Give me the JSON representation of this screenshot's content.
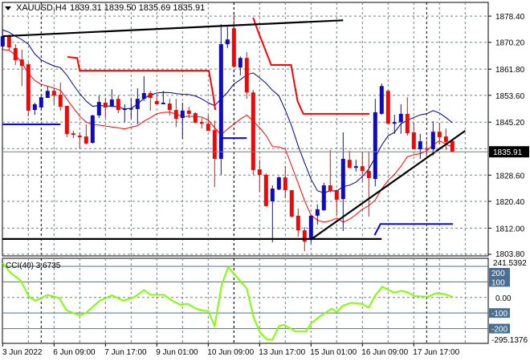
{
  "header": {
    "symbol": "XAUUSD,H4",
    "ohlc": "1839.31 1839.50 1835.69 1835.91"
  },
  "colors": {
    "bull": "#0a0ac8",
    "bear": "#ff0000",
    "grid": "#708090",
    "upper_line": "#000080",
    "lower_line": "#ff0000",
    "cci": "#7fff00",
    "level": "#4a6f93",
    "trendline": "#000000",
    "stop_red": "#ff0000",
    "stop_blue": "#0000ff"
  },
  "chart_data": [
    {
      "type": "candlestick",
      "symbol": "XAUUSD",
      "timeframe": "H4",
      "ylim": [
        1803.3,
        1882.7
      ],
      "grid": true,
      "candle_fields": [
        "open",
        "high",
        "low",
        "close"
      ],
      "candles": [
        [
          1868.9,
          1874.1,
          1867.9,
          1872.1
        ],
        [
          1872.1,
          1872.6,
          1867.6,
          1868.6
        ],
        [
          1868.4,
          1869.6,
          1863.1,
          1864.6
        ],
        [
          1864.8,
          1867.9,
          1856.5,
          1862.8
        ],
        [
          1863.3,
          1863.8,
          1847.0,
          1848.8
        ],
        [
          1849.0,
          1851.3,
          1847.5,
          1850.8
        ],
        [
          1849.8,
          1853.5,
          1849.5,
          1853.0
        ],
        [
          1852.8,
          1856.5,
          1852.8,
          1855.0
        ],
        [
          1855.0,
          1855.8,
          1850.8,
          1853.5
        ],
        [
          1853.8,
          1857.6,
          1848.8,
          1850.0
        ],
        [
          1850.3,
          1850.3,
          1840.5,
          1841.5
        ],
        [
          1841.7,
          1842.5,
          1840.2,
          1841.2
        ],
        [
          1841.0,
          1842.0,
          1837.0,
          1840.5
        ],
        [
          1840.7,
          1844.5,
          1838.2,
          1838.5
        ],
        [
          1838.7,
          1847.5,
          1838.5,
          1847.3
        ],
        [
          1847.3,
          1853.5,
          1846.5,
          1851.5
        ],
        [
          1851.3,
          1852.8,
          1846.5,
          1849.8
        ],
        [
          1850.0,
          1855.5,
          1850.0,
          1852.3
        ],
        [
          1852.5,
          1853.5,
          1848.0,
          1849.0
        ],
        [
          1849.0,
          1850.8,
          1845.2,
          1849.5
        ],
        [
          1849.3,
          1852.8,
          1846.2,
          1849.5
        ],
        [
          1849.3,
          1855.8,
          1844.5,
          1852.5
        ],
        [
          1852.5,
          1859.6,
          1851.8,
          1854.3
        ],
        [
          1854.3,
          1855.0,
          1848.8,
          1852.8
        ],
        [
          1851.8,
          1854.0,
          1850.8,
          1850.8
        ],
        [
          1850.8,
          1855.0,
          1850.8,
          1851.3
        ],
        [
          1851.0,
          1852.5,
          1847.3,
          1849.0
        ],
        [
          1849.0,
          1852.5,
          1843.7,
          1846.2
        ],
        [
          1846.5,
          1851.3,
          1840.0,
          1848.8
        ],
        [
          1848.8,
          1850.0,
          1846.5,
          1847.8
        ],
        [
          1848.0,
          1848.3,
          1845.0,
          1845.0
        ],
        [
          1845.2,
          1846.5,
          1843.2,
          1844.7
        ],
        [
          1844.7,
          1847.5,
          1842.5,
          1842.5
        ],
        [
          1842.7,
          1845.7,
          1824.9,
          1833.7
        ],
        [
          1833.7,
          1875.9,
          1828.7,
          1869.6
        ],
        [
          1869.6,
          1875.1,
          1868.4,
          1871.1
        ],
        [
          1874.6,
          1878.9,
          1862.6,
          1862.6
        ],
        [
          1862.3,
          1865.8,
          1859.8,
          1865.3
        ],
        [
          1865.3,
          1867.1,
          1852.5,
          1854.5
        ],
        [
          1854.5,
          1855.3,
          1828.7,
          1830.2
        ],
        [
          1830.4,
          1833.4,
          1823.4,
          1828.7
        ],
        [
          1828.7,
          1829.2,
          1818.9,
          1818.9
        ],
        [
          1820.4,
          1825.4,
          1807.6,
          1824.4
        ],
        [
          1824.1,
          1828.2,
          1823.9,
          1827.9
        ],
        [
          1827.9,
          1831.4,
          1821.4,
          1823.9
        ],
        [
          1823.9,
          1823.9,
          1815.3,
          1815.6
        ],
        [
          1815.9,
          1818.1,
          1809.3,
          1811.3
        ],
        [
          1811.3,
          1812.3,
          1804.8,
          1807.8
        ],
        [
          1808.3,
          1815.9,
          1807.1,
          1815.9
        ],
        [
          1815.9,
          1819.4,
          1813.1,
          1817.9
        ],
        [
          1817.6,
          1826.2,
          1817.4,
          1825.4
        ],
        [
          1825.4,
          1836.5,
          1823.1,
          1823.6
        ],
        [
          1823.9,
          1824.1,
          1816.1,
          1820.9
        ],
        [
          1821.1,
          1842.0,
          1811.1,
          1833.7
        ],
        [
          1833.4,
          1836.2,
          1830.7,
          1830.9
        ],
        [
          1830.9,
          1833.4,
          1829.7,
          1831.4
        ],
        [
          1831.4,
          1835.9,
          1826.4,
          1829.9
        ],
        [
          1829.9,
          1835.9,
          1815.6,
          1827.7
        ],
        [
          1827.4,
          1852.5,
          1825.1,
          1848.3
        ],
        [
          1847.8,
          1857.3,
          1847.5,
          1856.5
        ],
        [
          1855.0,
          1855.3,
          1844.7,
          1844.7
        ],
        [
          1844.7,
          1847.5,
          1841.5,
          1845.2
        ],
        [
          1845.2,
          1850.8,
          1841.5,
          1847.8
        ],
        [
          1847.8,
          1853.0,
          1841.0,
          1841.7
        ],
        [
          1842.0,
          1845.0,
          1836.7,
          1836.7
        ],
        [
          1836.7,
          1841.5,
          1833.7,
          1839.2
        ],
        [
          1837.0,
          1839.5,
          1834.4,
          1836.7
        ],
        [
          1836.7,
          1845.5,
          1834.7,
          1842.2
        ],
        [
          1842.2,
          1845.0,
          1838.2,
          1840.5
        ],
        [
          1840.7,
          1843.2,
          1836.5,
          1839.0
        ],
        [
          1839.31,
          1839.5,
          1835.69,
          1835.91
        ]
      ],
      "price_axis": {
        "ticks": [
          1878.4,
          1870.2,
          1861.8,
          1853.6,
          1845.2,
          1828.6,
          1820.4,
          1812.0,
          1803.8
        ],
        "labels": [
          "1878.40",
          "1870.20",
          "1861.80",
          "1853.60",
          "1845.20",
          "1828.60",
          "1820.40",
          "1812.00",
          "1803.80"
        ]
      },
      "current_price": {
        "value": 1835.91,
        "label": "1835.91"
      },
      "time_axis": [
        {
          "index": 0,
          "label": "3 Jun 2022"
        },
        {
          "index": 8,
          "label": "6 Jun 09:00"
        },
        {
          "index": 16,
          "label": "7 Jun 17:00"
        },
        {
          "index": 24,
          "label": "9 Jun 01:00"
        },
        {
          "index": 32,
          "label": "10 Jun 09:00"
        },
        {
          "index": 40,
          "label": "13 Jun 17:00"
        },
        {
          "index": 48,
          "label": "15 Jun 01:00"
        },
        {
          "index": 56,
          "label": "16 Jun 09:00"
        },
        {
          "index": 64,
          "label": "17 Jun 17:00"
        }
      ],
      "trendlines": [
        {
          "points": [
            [
              -0.1,
              1872.1
            ],
            [
              53.0,
              1877.1
            ]
          ]
        },
        {
          "points": [
            [
              -0.1,
              1808.6
            ],
            [
              59.0,
              1808.6
            ]
          ]
        },
        {
          "points": [
            [
              48.1,
              1808.6
            ],
            [
              72.0,
              1842.5
            ]
          ]
        }
      ],
      "stop_lines_red": [
        [
          [
            10.1,
            1865.6
          ],
          [
            11.6,
            1865.3
          ],
          [
            12.0,
            1861.3
          ],
          [
            32.1,
            1861.3
          ],
          [
            32.8,
            1853.3
          ],
          [
            33.1,
            1849.0
          ]
        ],
        [
          [
            39.0,
            1877.9
          ],
          [
            39.8,
            1873.4
          ],
          [
            41.8,
            1863.1
          ],
          [
            44.9,
            1863.1
          ],
          [
            45.9,
            1851.8
          ],
          [
            46.8,
            1847.8
          ],
          [
            57.1,
            1847.8
          ]
        ]
      ],
      "stop_lines_blue": [
        [
          [
            -0.1,
            1844.5
          ],
          [
            9.0,
            1844.5
          ]
        ],
        [
          [
            34.0,
            1840.2
          ],
          [
            38.0,
            1840.2
          ]
        ],
        [
          [
            57.9,
            1809.8
          ],
          [
            58.8,
            1813.3
          ],
          [
            70.1,
            1813.3
          ]
        ]
      ]
    },
    {
      "type": "line",
      "title": "CCI(40) 3.6735",
      "ylim": [
        -295.1376,
        241.5392
      ],
      "axis_labels": {
        "max": "241.5392",
        "min": "-295.1376",
        "zero": "0.00"
      },
      "levels": [
        {
          "value": 200,
          "label": "200"
        },
        {
          "value": 100,
          "label": "100"
        },
        {
          "value": -100,
          "label": "-100"
        },
        {
          "value": -200,
          "label": "-200"
        }
      ],
      "points": [
        [
          0,
          221
        ],
        [
          1.2,
          160
        ],
        [
          2.8,
          109
        ],
        [
          4.1,
          5
        ],
        [
          5.1,
          -21
        ],
        [
          7.0,
          17
        ],
        [
          8.8,
          -3
        ],
        [
          9.9,
          -81
        ],
        [
          12.0,
          -116
        ],
        [
          13.0,
          -98
        ],
        [
          15.1,
          -21
        ],
        [
          17.0,
          14
        ],
        [
          18.8,
          -21
        ],
        [
          20.6,
          5
        ],
        [
          22.0,
          48
        ],
        [
          23.0,
          17
        ],
        [
          25.1,
          17
        ],
        [
          26.4,
          -21
        ],
        [
          27.7,
          -47
        ],
        [
          28.8,
          -41
        ],
        [
          30.1,
          -72
        ],
        [
          31.4,
          -86
        ],
        [
          32.0,
          -86
        ],
        [
          33.0,
          -184
        ],
        [
          34.1,
          83
        ],
        [
          35.1,
          195
        ],
        [
          36.4,
          134
        ],
        [
          38.0,
          57
        ],
        [
          39.1,
          -133
        ],
        [
          40.1,
          -228
        ],
        [
          41.2,
          -271
        ],
        [
          42.0,
          -271
        ],
        [
          43.0,
          -184
        ],
        [
          43.8,
          -176
        ],
        [
          45.6,
          -219
        ],
        [
          47.2,
          -219
        ],
        [
          48.0,
          -167
        ],
        [
          49.3,
          -124
        ],
        [
          51.2,
          -72
        ],
        [
          52.0,
          -93
        ],
        [
          53.0,
          -52
        ],
        [
          54.3,
          -34
        ],
        [
          55.9,
          -41
        ],
        [
          57.0,
          -64
        ],
        [
          58.0,
          14
        ],
        [
          59.1,
          69
        ],
        [
          60.9,
          31
        ],
        [
          62.0,
          43
        ],
        [
          63.0,
          34
        ],
        [
          64.1,
          9
        ],
        [
          66.2,
          5
        ],
        [
          67.5,
          28
        ],
        [
          68.8,
          22
        ],
        [
          70.1,
          2
        ]
      ]
    }
  ]
}
